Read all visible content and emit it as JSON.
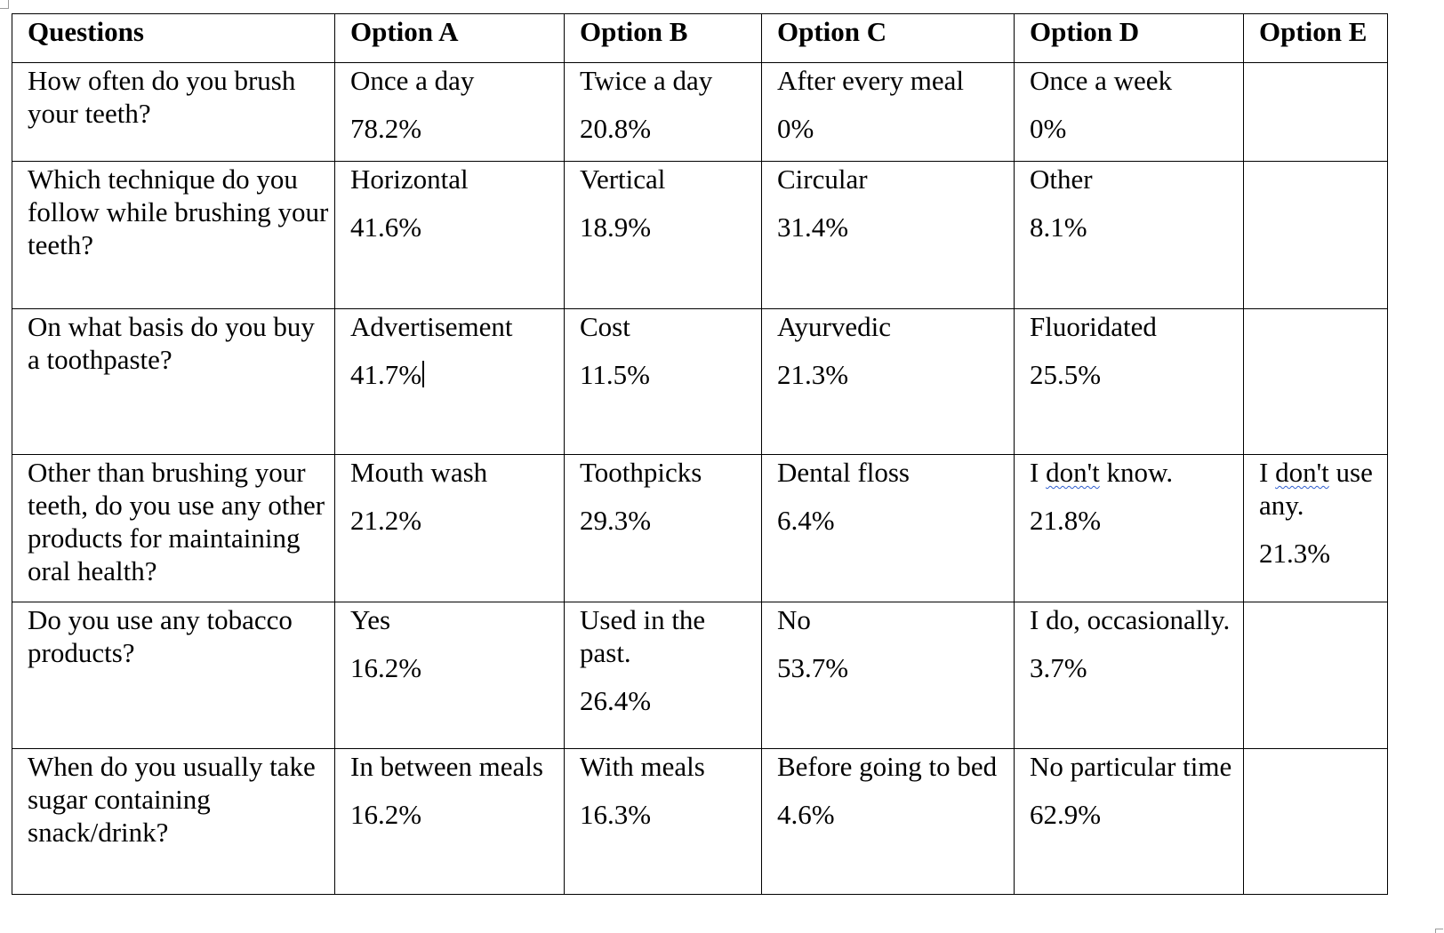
{
  "table": {
    "headers": [
      "Questions",
      "Option A",
      "Option B",
      "Option C",
      "Option D",
      "Option E"
    ],
    "rows": [
      {
        "question": "How often do you brush your teeth?",
        "options": [
          {
            "label": "Once a day",
            "pct": "78.2%"
          },
          {
            "label": "Twice a day",
            "pct": "20.8%"
          },
          {
            "label": "After every meal",
            "pct": "0%"
          },
          {
            "label": "Once a week",
            "pct": "0%"
          },
          {
            "label": "",
            "pct": ""
          }
        ]
      },
      {
        "question": "Which technique do you follow while brushing your teeth?",
        "options": [
          {
            "label": "Horizontal",
            "pct": "41.6%"
          },
          {
            "label": "Vertical",
            "pct": "18.9%"
          },
          {
            "label": "Circular",
            "pct": "31.4%"
          },
          {
            "label": "Other",
            "pct": "8.1%"
          },
          {
            "label": "",
            "pct": ""
          }
        ]
      },
      {
        "question": "On what basis do you buy a toothpaste?",
        "options": [
          {
            "label": "Advertisement",
            "pct": "41.7%"
          },
          {
            "label": "Cost",
            "pct": "11.5%"
          },
          {
            "label": "Ayurvedic",
            "pct": "21.3%"
          },
          {
            "label": "Fluoridated",
            "pct": "25.5%"
          },
          {
            "label": "",
            "pct": ""
          }
        ]
      },
      {
        "question": "Other than brushing your teeth, do you use any other products for maintaining oral health?",
        "options": [
          {
            "label": "Mouth wash",
            "pct": "21.2%"
          },
          {
            "label": "Toothpicks",
            "pct": "29.3%"
          },
          {
            "label": "Dental floss",
            "pct": "6.4%"
          },
          {
            "label": "I don't know.",
            "pct": "21.8%"
          },
          {
            "label": "I don't use any.",
            "pct": "21.3%"
          }
        ]
      },
      {
        "question": "Do you use any tobacco products?",
        "options": [
          {
            "label": "Yes",
            "pct": "16.2%"
          },
          {
            "label": "Used in the past.",
            "pct": "26.4%"
          },
          {
            "label": "No",
            "pct": "53.7%"
          },
          {
            "label": "I do, occasionally.",
            "pct": "3.7%"
          },
          {
            "label": "",
            "pct": ""
          }
        ]
      },
      {
        "question": "When do you usually take sugar containing snack/drink?",
        "options": [
          {
            "label": "In between meals",
            "pct": "16.2%"
          },
          {
            "label": "With meals",
            "pct": "16.3%"
          },
          {
            "label": "Before going to bed",
            "pct": "4.6%"
          },
          {
            "label": "No particular time",
            "pct": "62.9%"
          },
          {
            "label": "",
            "pct": ""
          }
        ]
      }
    ]
  }
}
